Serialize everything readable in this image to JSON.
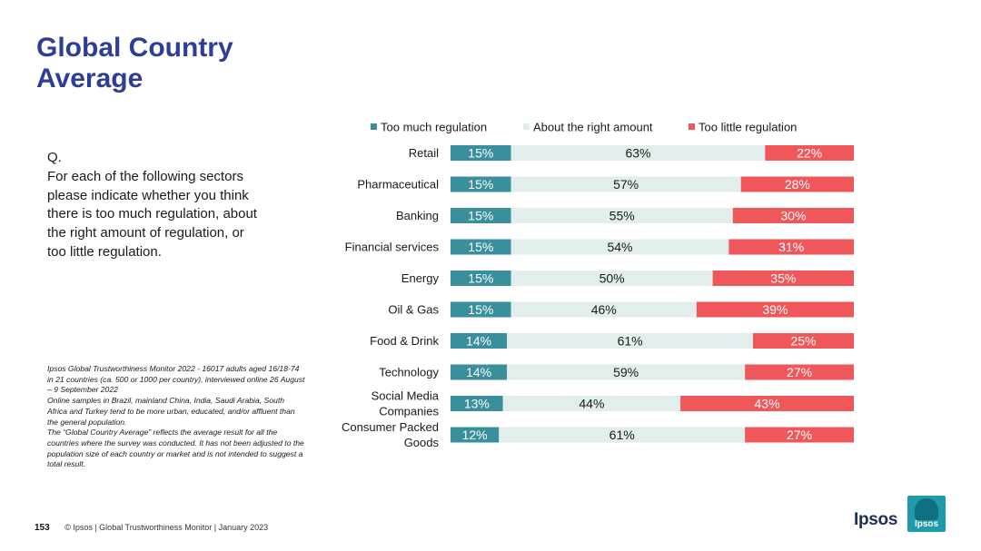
{
  "title": "Global Country Average",
  "question": {
    "label": "Q.",
    "text": "For each of the following sectors please indicate whether you think there is too much regulation, about the right amount of regulation, or too little regulation."
  },
  "notes": [
    "Ipsos Global Trustworthiness Monitor 2022 - 16017 adults aged 16/18-74 in 21 countries (ca. 500 or 1000 per country), interviewed online 26 August – 9 September 2022",
    "Online samples in Brazil, mainland China, India, Saudi Arabia, South Africa and Turkey tend to be more urban, educated, and/or affluent than the general population.",
    "The “Global Country Average” reflects the average result for all the countries where the survey was conducted. It has not been adjusted to the population size of each country or market and is not intended to suggest a total result."
  ],
  "footer": {
    "page_number": "153",
    "text": "© Ipsos | Global Trustworthiness Monitor | January 2023"
  },
  "logo": {
    "text": "Ipsos",
    "box_label": "Ipsos"
  },
  "colors": {
    "too_much": "#3a8f9c",
    "about_right": "#e1eeec",
    "too_little": "#f0575b",
    "title": "#2e3d98"
  },
  "chart_data": {
    "type": "bar",
    "orientation": "horizontal",
    "stacked": true,
    "legend_position": "top",
    "xlim": [
      0,
      100
    ],
    "categories": [
      [
        "Retail"
      ],
      [
        "Pharmaceutical"
      ],
      [
        "Banking"
      ],
      [
        "Financial services"
      ],
      [
        "Energy"
      ],
      [
        "Oil & Gas"
      ],
      [
        "Food & Drink"
      ],
      [
        "Technology"
      ],
      [
        "Social Media",
        "Companies"
      ],
      [
        "Consumer Packed",
        "Goods"
      ]
    ],
    "series": [
      {
        "name": "Too much regulation",
        "key": "too_much",
        "label_color": "#ffffff",
        "values": [
          15,
          15,
          15,
          15,
          15,
          15,
          14,
          14,
          13,
          12
        ]
      },
      {
        "name": "About the right amount",
        "key": "about_right",
        "label_color": "#1a1a1a",
        "values": [
          63,
          57,
          55,
          54,
          50,
          46,
          61,
          59,
          44,
          61
        ]
      },
      {
        "name": "Too little regulation",
        "key": "too_little",
        "label_color": "#ffffff",
        "values": [
          22,
          28,
          30,
          31,
          35,
          39,
          25,
          27,
          43,
          27
        ]
      }
    ]
  }
}
